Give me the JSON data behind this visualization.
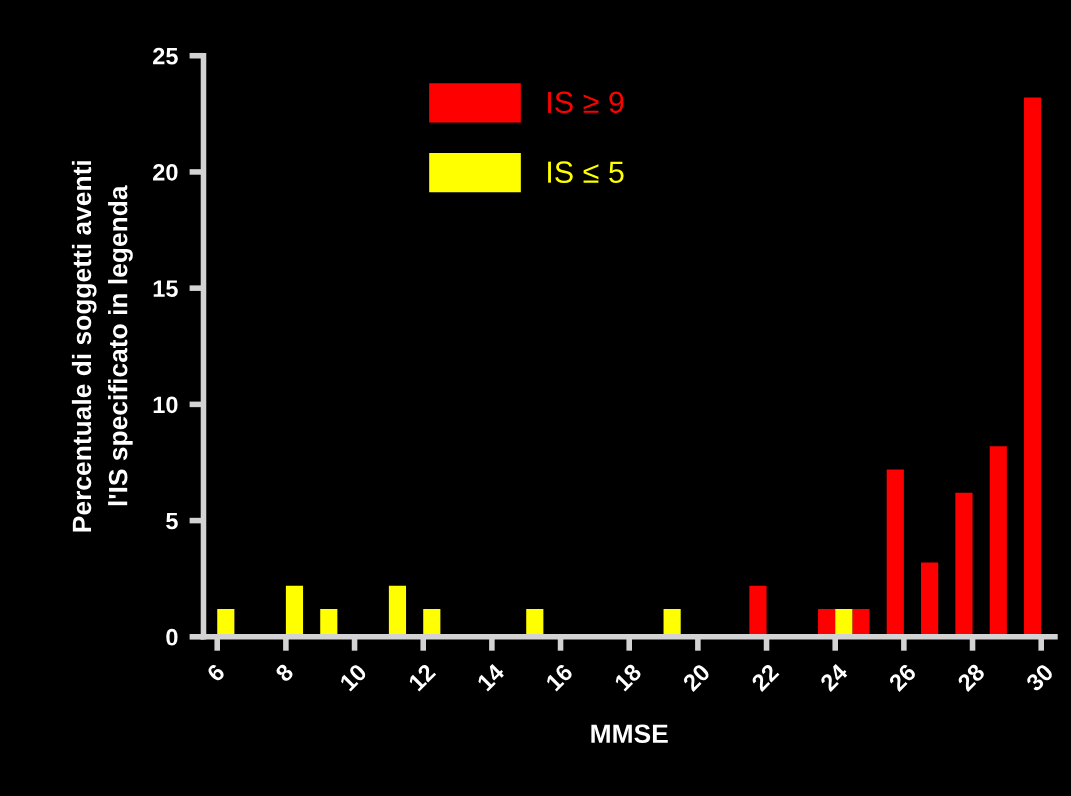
{
  "chart_data": {
    "type": "bar",
    "xlabel": "MMSE",
    "ylabel": "Percentuale di soggetti aventi\nl'IS specificato in legenda",
    "series": [
      {
        "name": "IS ≥ 9",
        "color": "#ff0000",
        "x": [
          22,
          24,
          25,
          26,
          27,
          28,
          29,
          30
        ],
        "values": [
          2.2,
          1.2,
          1.2,
          7.2,
          3.2,
          6.2,
          8.2,
          23.2
        ]
      },
      {
        "name": "IS ≤ 5",
        "color": "#ffff00",
        "x": [
          6,
          8,
          9,
          11,
          12,
          15,
          19,
          24
        ],
        "values": [
          1.2,
          2.2,
          1.2,
          2.2,
          1.2,
          1.2,
          1.2,
          1.2
        ]
      }
    ],
    "xlim": [
      5.6,
      30.4
    ],
    "xticks": [
      6,
      8,
      10,
      12,
      14,
      16,
      18,
      20,
      22,
      24,
      26,
      28,
      30
    ],
    "ylim": [
      0,
      25
    ],
    "yticks": [
      0,
      5,
      10,
      15,
      20,
      25
    ],
    "grid": false,
    "legend": "top"
  }
}
